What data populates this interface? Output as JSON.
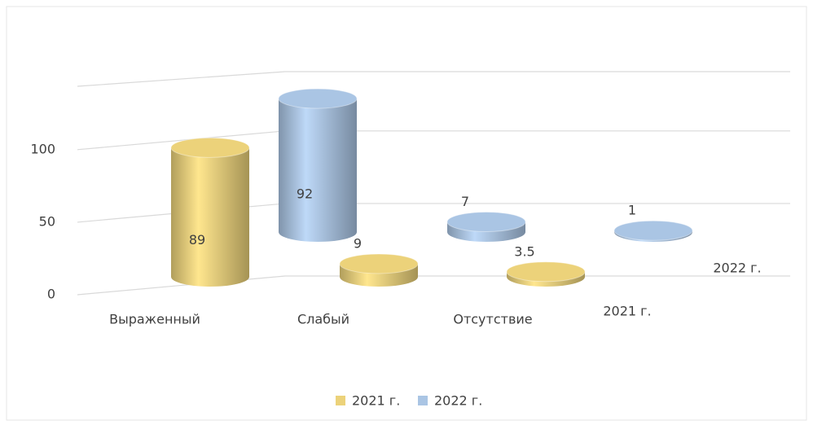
{
  "chart_data": {
    "type": "bar3d",
    "categories": [
      "Выраженный",
      "Слабый",
      "Отсутствие"
    ],
    "series": [
      {
        "name": "2021 г.",
        "color": "#ecd27a",
        "values": [
          89,
          9,
          3.5
        ]
      },
      {
        "name": "2022 г.",
        "color": "#aac5e4",
        "values": [
          92,
          7,
          1
        ]
      }
    ],
    "ylim": [
      0,
      150
    ],
    "yticks": [
      0,
      50,
      100
    ],
    "grid": true,
    "legend": "bottom"
  }
}
